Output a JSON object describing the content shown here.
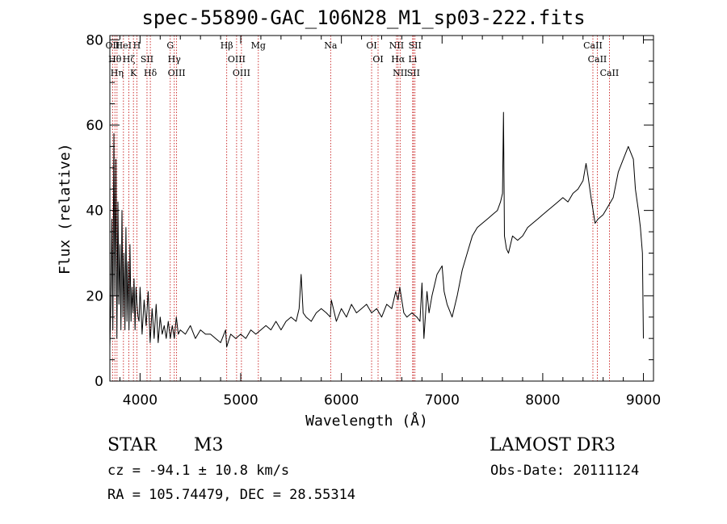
{
  "chart_data": {
    "type": "line",
    "title": "spec-55890-GAC_106N28_M1_sp03-222.fits",
    "xlabel": "Wavelength (Å)",
    "ylabel": "Flux (relative)",
    "xlim": [
      3700,
      9100
    ],
    "ylim": [
      0,
      81
    ],
    "x_ticks": [
      4000,
      5000,
      6000,
      7000,
      8000,
      9000
    ],
    "y_ticks": [
      0,
      20,
      40,
      60,
      80
    ],
    "x_tick_labels": [
      "4000",
      "5000",
      "6000",
      "7000",
      "8000",
      "9000"
    ],
    "y_tick_labels": [
      "0",
      "20",
      "40",
      "60",
      "80"
    ],
    "grid": false,
    "series": [
      {
        "name": "spectrum",
        "x": [
          3700,
          3710,
          3720,
          3730,
          3740,
          3750,
          3760,
          3770,
          3780,
          3790,
          3800,
          3810,
          3820,
          3830,
          3840,
          3850,
          3860,
          3870,
          3880,
          3890,
          3900,
          3910,
          3920,
          3930,
          3940,
          3950,
          3960,
          3970,
          3980,
          3990,
          4000,
          4020,
          4040,
          4060,
          4080,
          4100,
          4120,
          4140,
          4160,
          4180,
          4200,
          4220,
          4240,
          4260,
          4280,
          4300,
          4320,
          4340,
          4360,
          4380,
          4400,
          4450,
          4500,
          4550,
          4600,
          4650,
          4700,
          4750,
          4800,
          4850,
          4860,
          4900,
          4950,
          5000,
          5050,
          5100,
          5150,
          5200,
          5250,
          5300,
          5350,
          5400,
          5450,
          5500,
          5550,
          5580,
          5600,
          5620,
          5650,
          5700,
          5750,
          5800,
          5850,
          5890,
          5900,
          5950,
          6000,
          6050,
          6100,
          6150,
          6200,
          6250,
          6300,
          6350,
          6400,
          6450,
          6500,
          6540,
          6563,
          6580,
          6620,
          6650,
          6700,
          6750,
          6780,
          6800,
          6820,
          6850,
          6870,
          6900,
          6950,
          7000,
          7020,
          7050,
          7100,
          7150,
          7200,
          7250,
          7300,
          7350,
          7400,
          7450,
          7500,
          7550,
          7580,
          7600,
          7610,
          7620,
          7640,
          7660,
          7680,
          7700,
          7750,
          7800,
          7850,
          7900,
          7950,
          8000,
          8050,
          8100,
          8150,
          8200,
          8250,
          8300,
          8350,
          8400,
          8430,
          8450,
          8480,
          8500,
          8520,
          8550,
          8600,
          8650,
          8700,
          8750,
          8800,
          8850,
          8900,
          8920,
          8950,
          8970,
          8990,
          9000
        ],
        "y": [
          8,
          18,
          38,
          12,
          58,
          20,
          52,
          10,
          42,
          18,
          32,
          12,
          40,
          15,
          30,
          12,
          36,
          14,
          28,
          12,
          32,
          14,
          22,
          16,
          24,
          12,
          22,
          18,
          15,
          14,
          22,
          11,
          19,
          13,
          21,
          9,
          17,
          10,
          18,
          9,
          15,
          11,
          13,
          10,
          14,
          10,
          13,
          10,
          15,
          11,
          12,
          11,
          13,
          10,
          12,
          11,
          11,
          10,
          9,
          12,
          8,
          11,
          10,
          11,
          10,
          12,
          11,
          12,
          13,
          12,
          14,
          12,
          14,
          15,
          14,
          17,
          25,
          16,
          15,
          14,
          16,
          17,
          16,
          15,
          19,
          14,
          17,
          15,
          18,
          16,
          17,
          18,
          16,
          17,
          15,
          18,
          17,
          21,
          19,
          22,
          16,
          15,
          16,
          15,
          14,
          23,
          10,
          21,
          16,
          20,
          25,
          27,
          21,
          18,
          15,
          20,
          26,
          30,
          34,
          36,
          37,
          38,
          39,
          40,
          42,
          44,
          63,
          34,
          31,
          30,
          32,
          34,
          33,
          34,
          36,
          37,
          38,
          39,
          40,
          41,
          42,
          43,
          42,
          44,
          45,
          47,
          51,
          48,
          43,
          40,
          37,
          38,
          39,
          41,
          43,
          49,
          52,
          55,
          52,
          45,
          40,
          36,
          30,
          10
        ]
      }
    ],
    "lines": [
      {
        "x": 3727,
        "label": "OII"
      },
      {
        "x": 3750,
        "label": "Hθ"
      },
      {
        "x": 3771,
        "label": "Hη"
      },
      {
        "x": 3835,
        "label": "HeI"
      },
      {
        "x": 3889,
        "label": "Hζ"
      },
      {
        "x": 3934,
        "label": "K"
      },
      {
        "x": 3968,
        "label": "H"
      },
      {
        "x": 4069,
        "label": "SII"
      },
      {
        "x": 4102,
        "label": "Hδ"
      },
      {
        "x": 4300,
        "label": "G"
      },
      {
        "x": 4340,
        "label": "Hγ"
      },
      {
        "x": 4363,
        "label": "OIII"
      },
      {
        "x": 4861,
        "label": "Hβ"
      },
      {
        "x": 4959,
        "label": "OIII"
      },
      {
        "x": 5007,
        "label": "OIII"
      },
      {
        "x": 5175,
        "label": "Mg"
      },
      {
        "x": 5893,
        "label": "Na"
      },
      {
        "x": 6300,
        "label": "OI"
      },
      {
        "x": 6364,
        "label": "OI"
      },
      {
        "x": 6548,
        "label": "NII"
      },
      {
        "x": 6563,
        "label": "Hα"
      },
      {
        "x": 6583,
        "label": "NII"
      },
      {
        "x": 6708,
        "label": "Li"
      },
      {
        "x": 6716,
        "label": "SII"
      },
      {
        "x": 6731,
        "label": "SII"
      },
      {
        "x": 8498,
        "label": "CaII"
      },
      {
        "x": 8542,
        "label": "CaII"
      },
      {
        "x": 8662,
        "label": "CaII"
      }
    ]
  },
  "info": {
    "object_class": "STAR",
    "subclass": "M3",
    "survey": "LAMOST DR3",
    "redshift": "cz = -94.1 ± 10.8 km/s",
    "obs_date": "Obs-Date: 20111124",
    "coords": "RA = 105.74479, DEC =  28.55314"
  }
}
